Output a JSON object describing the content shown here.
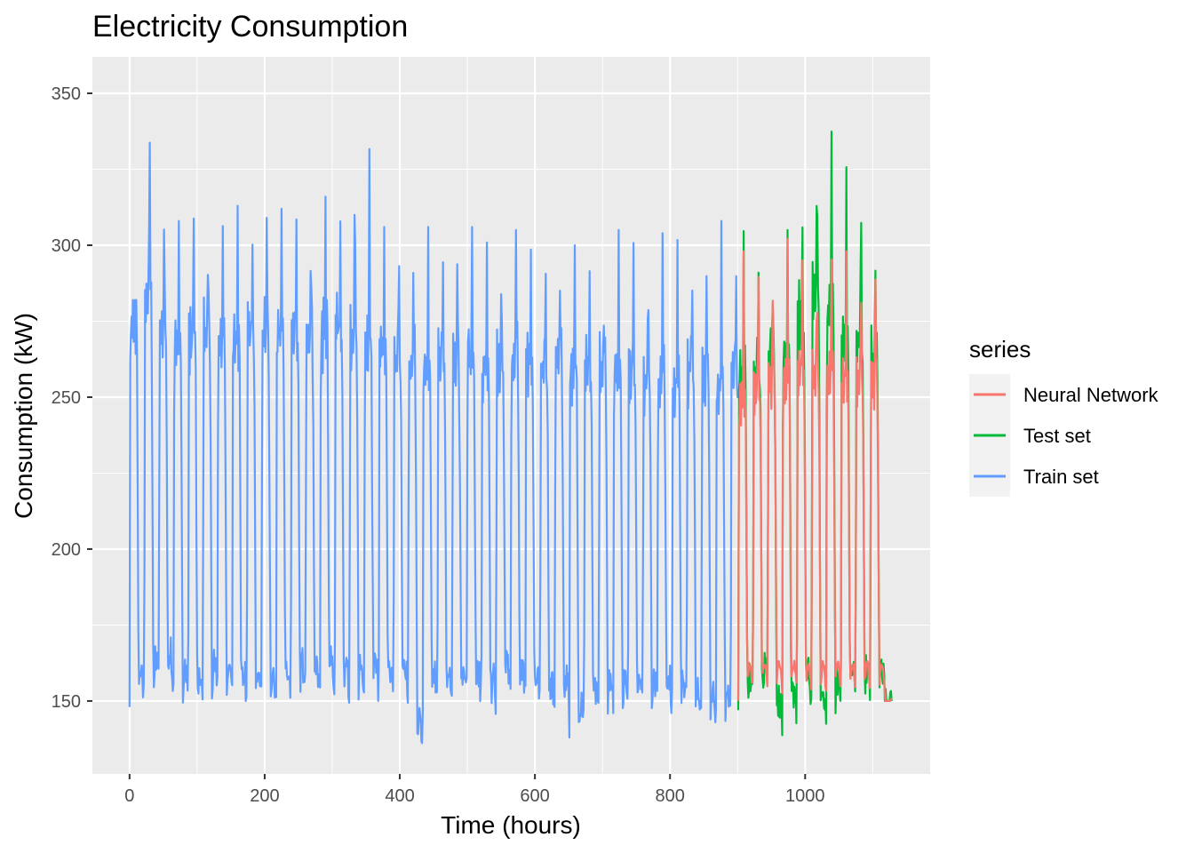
{
  "chart_data": {
    "type": "line",
    "title": "Electricity Consumption",
    "xlabel": "Time (hours)",
    "ylabel": "Consumption (kW)",
    "xlim": [
      -55,
      1185
    ],
    "ylim": [
      126,
      362
    ],
    "x_ticks": [
      0,
      200,
      400,
      600,
      800,
      1000
    ],
    "y_ticks": [
      150,
      200,
      250,
      300,
      350
    ],
    "x_tick_labels": [
      "0",
      "200",
      "400",
      "600",
      "800",
      "1000"
    ],
    "y_tick_labels": [
      "150",
      "200",
      "250",
      "300",
      "350"
    ],
    "grid": true,
    "legend": {
      "title": "series",
      "position": "right",
      "entries": [
        {
          "name": "Neural Network",
          "color": "#F8766D"
        },
        {
          "name": "Test set",
          "color": "#00BA38"
        },
        {
          "name": "Train set",
          "color": "#619CFF"
        }
      ]
    },
    "series": [
      {
        "name": "Train set",
        "color": "#619CFF",
        "x_range": [
          0,
          900
        ],
        "sampling_interval_hours": 1,
        "period_hours": 21.7,
        "cycle_peaks": [
          282,
          350,
          326,
          308,
          315,
          312,
          312,
          313,
          308,
          320,
          312,
          314,
          310,
          316,
          308,
          342,
          334,
          306,
          305,
          303,
          306,
          300,
          310,
          306,
          306,
          304,
          305,
          303,
          303,
          300,
          300,
          295,
          296,
          305,
          302,
          298,
          304,
          304,
          302,
          305,
          308,
          305
        ],
        "cycle_troughs": [
          148,
          152,
          153,
          148,
          147,
          150,
          148,
          147,
          150,
          144,
          148,
          150,
          149,
          152,
          148,
          150,
          150,
          150,
          148,
          134,
          146,
          147,
          150,
          147,
          145,
          150,
          148,
          147,
          145,
          146,
          138,
          142,
          145,
          144,
          146,
          146,
          146,
          145,
          142,
          143,
          142,
          142
        ],
        "cycle_plateaus": [
          275,
          285,
          272,
          268,
          270,
          270,
          268,
          268,
          272,
          270,
          272,
          270,
          268,
          270,
          272,
          270,
          266,
          265,
          262,
          262,
          262,
          262,
          258,
          262,
          258,
          260,
          262,
          260,
          258,
          260,
          260,
          258,
          258,
          258,
          258,
          255,
          255,
          255,
          258,
          255,
          255,
          258
        ]
      },
      {
        "name": "Test set",
        "color": "#00BA38",
        "x_range": [
          901,
          1128
        ],
        "sampling_interval_hours": 1,
        "period_hours": 21.7,
        "cycle_peaks": [
          305,
          305,
          303,
          305,
          308,
          355,
          342,
          330,
          335,
          300
        ],
        "cycle_troughs": [
          147,
          150,
          138,
          141,
          147,
          142,
          144,
          148,
          150,
          150
        ],
        "cycle_plateaus": [
          256,
          258,
          262,
          262,
          275,
          285,
          275,
          268,
          268,
          262
        ]
      },
      {
        "name": "Neural Network",
        "color": "#F8766D",
        "x_range": [
          901,
          1128
        ],
        "sampling_interval_hours": 1,
        "period_hours": 21.7,
        "cycle_peaks": [
          298,
          302,
          301,
          302,
          300,
          300,
          300,
          300,
          300,
          300
        ],
        "cycle_troughs": [
          150,
          150,
          151,
          150,
          150,
          150,
          150,
          150,
          150,
          150
        ],
        "cycle_plateaus": [
          248,
          252,
          255,
          255,
          258,
          258,
          258,
          255,
          255,
          255
        ]
      }
    ]
  }
}
